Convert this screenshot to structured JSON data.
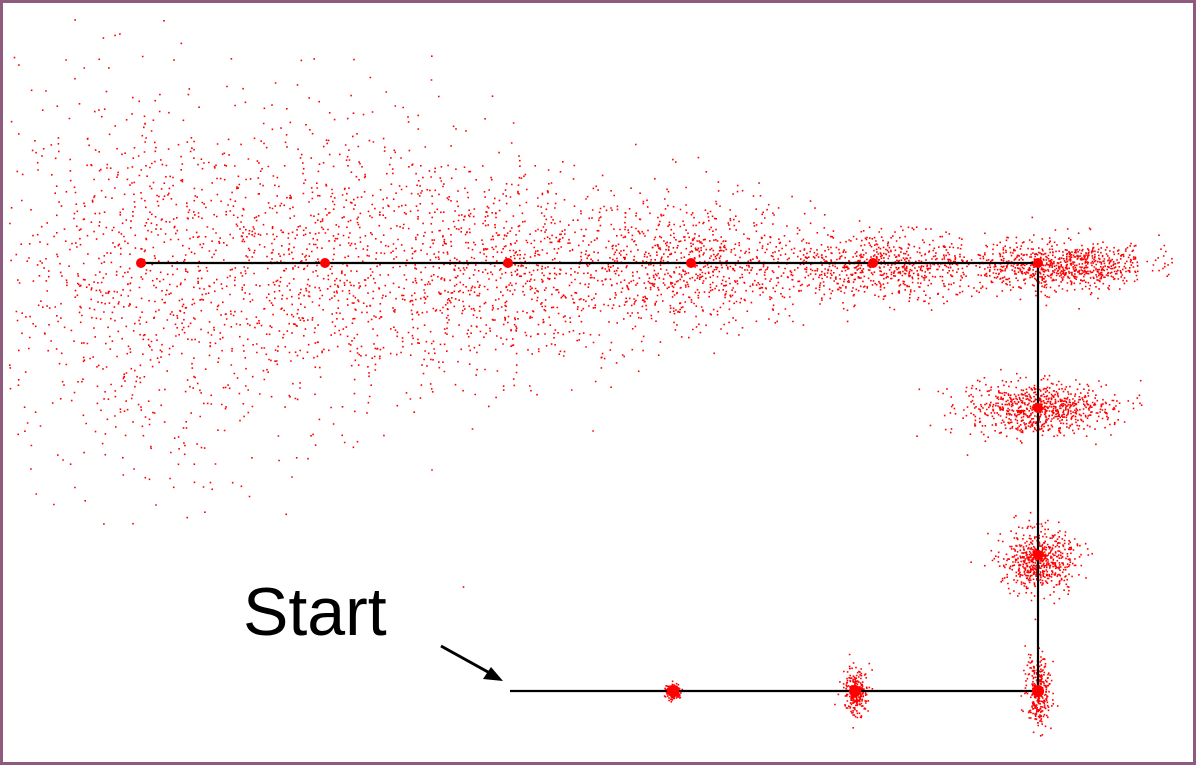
{
  "diagram": {
    "start_label": "Start",
    "colors": {
      "points": "#ff0000",
      "path": "#000000",
      "border": "#8e5a7e",
      "background": "#ffffff"
    }
  }
}
